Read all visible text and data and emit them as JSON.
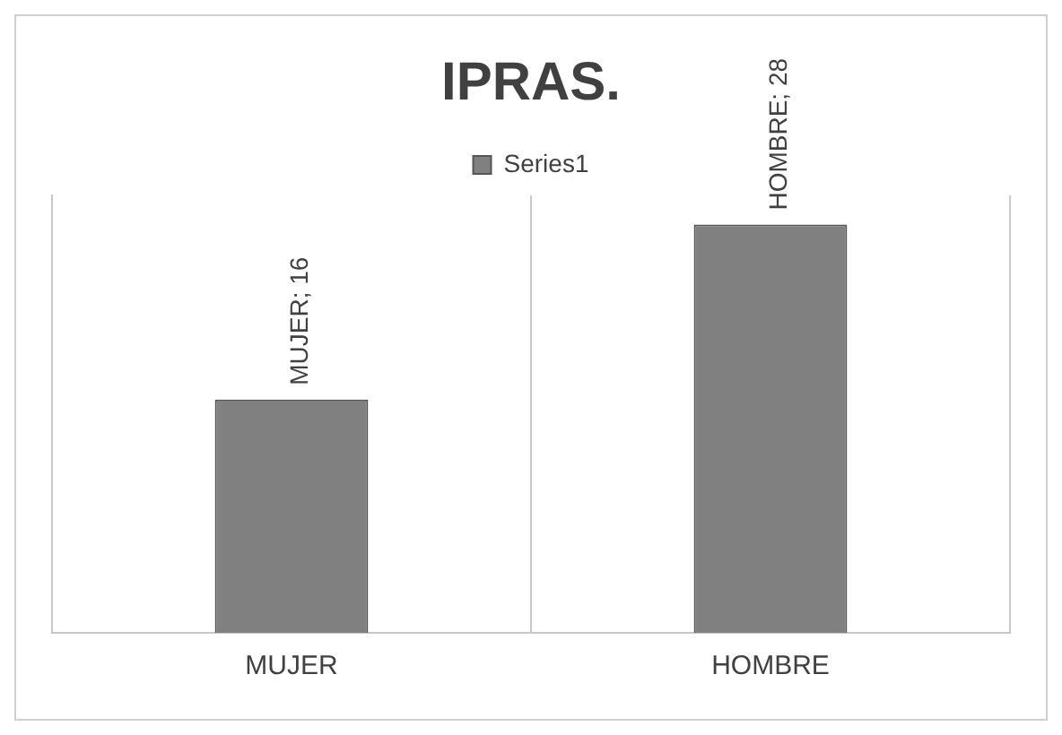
{
  "chart_data": {
    "type": "bar",
    "title": "IPRAS.",
    "categories": [
      "MUJER",
      "HOMBRE"
    ],
    "series": [
      {
        "name": "Series1",
        "color": "#808080",
        "values": [
          16,
          28
        ],
        "value_labels": [
          "MUJER; 16",
          "HOMBRE; 28"
        ]
      }
    ],
    "tick_labels": "x",
    "grid": "x",
    "legend": "top"
  }
}
